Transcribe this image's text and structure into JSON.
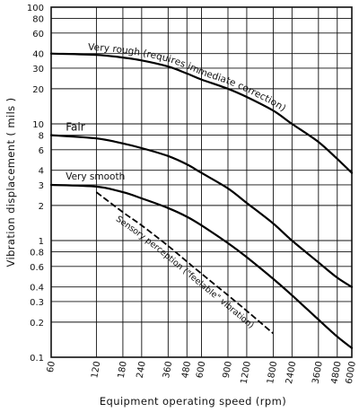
{
  "chart_data": {
    "type": "line",
    "xlabel": "Equipment operating speed (rpm)",
    "ylabel": "Vibration displacement ( mils )",
    "x_scale": "log",
    "y_scale": "log",
    "x_ticks": [
      60,
      120,
      180,
      240,
      360,
      480,
      600,
      900,
      1200,
      1800,
      2400,
      3600,
      4800,
      6000
    ],
    "x_tick_labels": [
      "60",
      "120",
      "180",
      "240",
      "360",
      "480",
      "600",
      "900",
      "1200",
      "1800",
      "2400",
      "3600",
      "4800",
      "6000"
    ],
    "y_ticks": [
      0.1,
      0.2,
      0.3,
      0.4,
      0.6,
      0.8,
      1,
      2,
      3,
      4,
      6,
      8,
      10,
      20,
      30,
      40,
      60,
      80,
      100
    ],
    "y_tick_labels": [
      "0.1",
      "0.2",
      "0.3",
      "0.4",
      "0.6",
      "0.8",
      "1",
      "2",
      "3",
      "4",
      "6",
      "8",
      "10",
      "20",
      "30",
      "40",
      "60",
      "80",
      "100"
    ],
    "xlim": [
      60,
      6000
    ],
    "ylim": [
      0.1,
      100
    ],
    "grid": true,
    "series": [
      {
        "name": "Very rough (requires immediate correction)",
        "style": "solid",
        "x": [
          60,
          120,
          180,
          240,
          360,
          480,
          600,
          900,
          1200,
          1800,
          2400,
          3600,
          4800,
          6000
        ],
        "y": [
          40,
          39,
          37,
          35,
          31,
          27,
          24,
          20,
          17,
          13,
          10,
          7,
          5,
          3.8
        ]
      },
      {
        "name": "Fair",
        "style": "solid",
        "x": [
          60,
          120,
          180,
          240,
          360,
          480,
          600,
          900,
          1200,
          1800,
          2400,
          3600,
          4800,
          6000
        ],
        "y": [
          8,
          7.5,
          6.8,
          6.2,
          5.3,
          4.5,
          3.8,
          2.8,
          2.1,
          1.4,
          1.0,
          0.65,
          0.48,
          0.4
        ]
      },
      {
        "name": "Very smooth",
        "style": "solid",
        "x": [
          60,
          120,
          180,
          240,
          360,
          480,
          600,
          900,
          1200,
          1800,
          2400,
          3600,
          4800,
          6000
        ],
        "y": [
          3,
          2.9,
          2.6,
          2.3,
          1.9,
          1.6,
          1.35,
          0.95,
          0.72,
          0.47,
          0.34,
          0.21,
          0.15,
          0.12
        ]
      },
      {
        "name": "Sensory perception (\"feelable\" vibration)",
        "style": "dashed",
        "x": [
          120,
          180,
          240,
          360,
          480,
          600,
          900,
          1200,
          1800
        ],
        "y": [
          2.6,
          1.75,
          1.35,
          0.9,
          0.66,
          0.52,
          0.34,
          0.25,
          0.16
        ]
      }
    ]
  }
}
